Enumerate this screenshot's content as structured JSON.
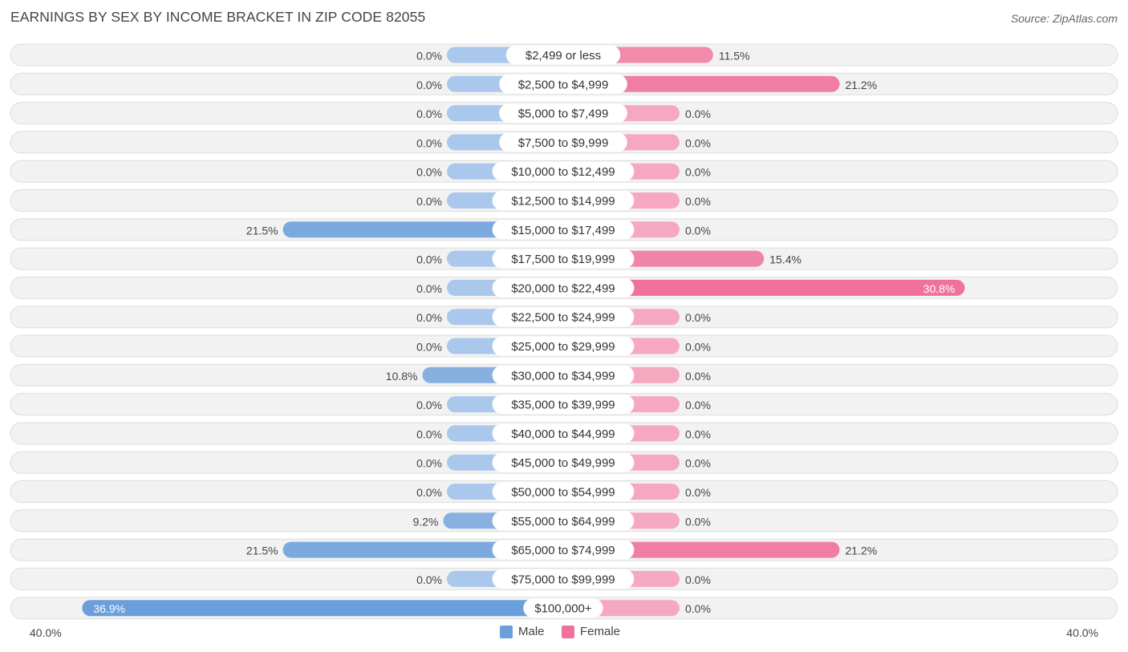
{
  "title": "EARNINGS BY SEX BY INCOME BRACKET IN ZIP CODE 82055",
  "source": "Source: ZipAtlas.com",
  "colors": {
    "male": "#6a9fdc",
    "male_light": "#aac8ec",
    "female": "#f0729a",
    "female_light": "#f6a8c0",
    "row_bg": "#f2f2f2",
    "row_border": "#dddddd"
  },
  "legend": {
    "male_label": "Male",
    "female_label": "Female"
  },
  "axis": {
    "left_label": "40.0%",
    "right_label": "40.0%"
  },
  "chart_data": {
    "type": "bar",
    "orientation": "horizontal-diverging",
    "title": "EARNINGS BY SEX BY INCOME BRACKET IN ZIP CODE 82055",
    "xlim": [
      -40,
      40
    ],
    "unit": "%",
    "categories": [
      "$2,499 or less",
      "$2,500 to $4,999",
      "$5,000 to $7,499",
      "$7,500 to $9,999",
      "$10,000 to $12,499",
      "$12,500 to $14,999",
      "$15,000 to $17,499",
      "$17,500 to $19,999",
      "$20,000 to $22,499",
      "$22,500 to $24,999",
      "$25,000 to $29,999",
      "$30,000 to $34,999",
      "$35,000 to $39,999",
      "$40,000 to $44,999",
      "$45,000 to $49,999",
      "$50,000 to $54,999",
      "$55,000 to $64,999",
      "$65,000 to $74,999",
      "$75,000 to $99,999",
      "$100,000+"
    ],
    "series": [
      {
        "name": "Male",
        "values": [
          0,
          0,
          0,
          0,
          0,
          0,
          21.5,
          0,
          0,
          0,
          0,
          10.8,
          0,
          0,
          0,
          0,
          9.2,
          21.5,
          0,
          36.9
        ],
        "labels": [
          "0.0%",
          "0.0%",
          "0.0%",
          "0.0%",
          "0.0%",
          "0.0%",
          "21.5%",
          "0.0%",
          "0.0%",
          "0.0%",
          "0.0%",
          "10.8%",
          "0.0%",
          "0.0%",
          "0.0%",
          "0.0%",
          "9.2%",
          "21.5%",
          "0.0%",
          "36.9%"
        ]
      },
      {
        "name": "Female",
        "values": [
          11.5,
          21.2,
          0,
          0,
          0,
          0,
          0,
          15.4,
          30.8,
          0,
          0,
          0,
          0,
          0,
          0,
          0,
          0,
          21.2,
          0,
          0
        ],
        "labels": [
          "11.5%",
          "21.2%",
          "0.0%",
          "0.0%",
          "0.0%",
          "0.0%",
          "0.0%",
          "15.4%",
          "30.8%",
          "0.0%",
          "0.0%",
          "0.0%",
          "0.0%",
          "0.0%",
          "0.0%",
          "0.0%",
          "0.0%",
          "21.2%",
          "0.0%",
          "0.0%"
        ]
      }
    ],
    "legend": [
      "Male",
      "Female"
    ],
    "legend_position": "bottom-center"
  }
}
